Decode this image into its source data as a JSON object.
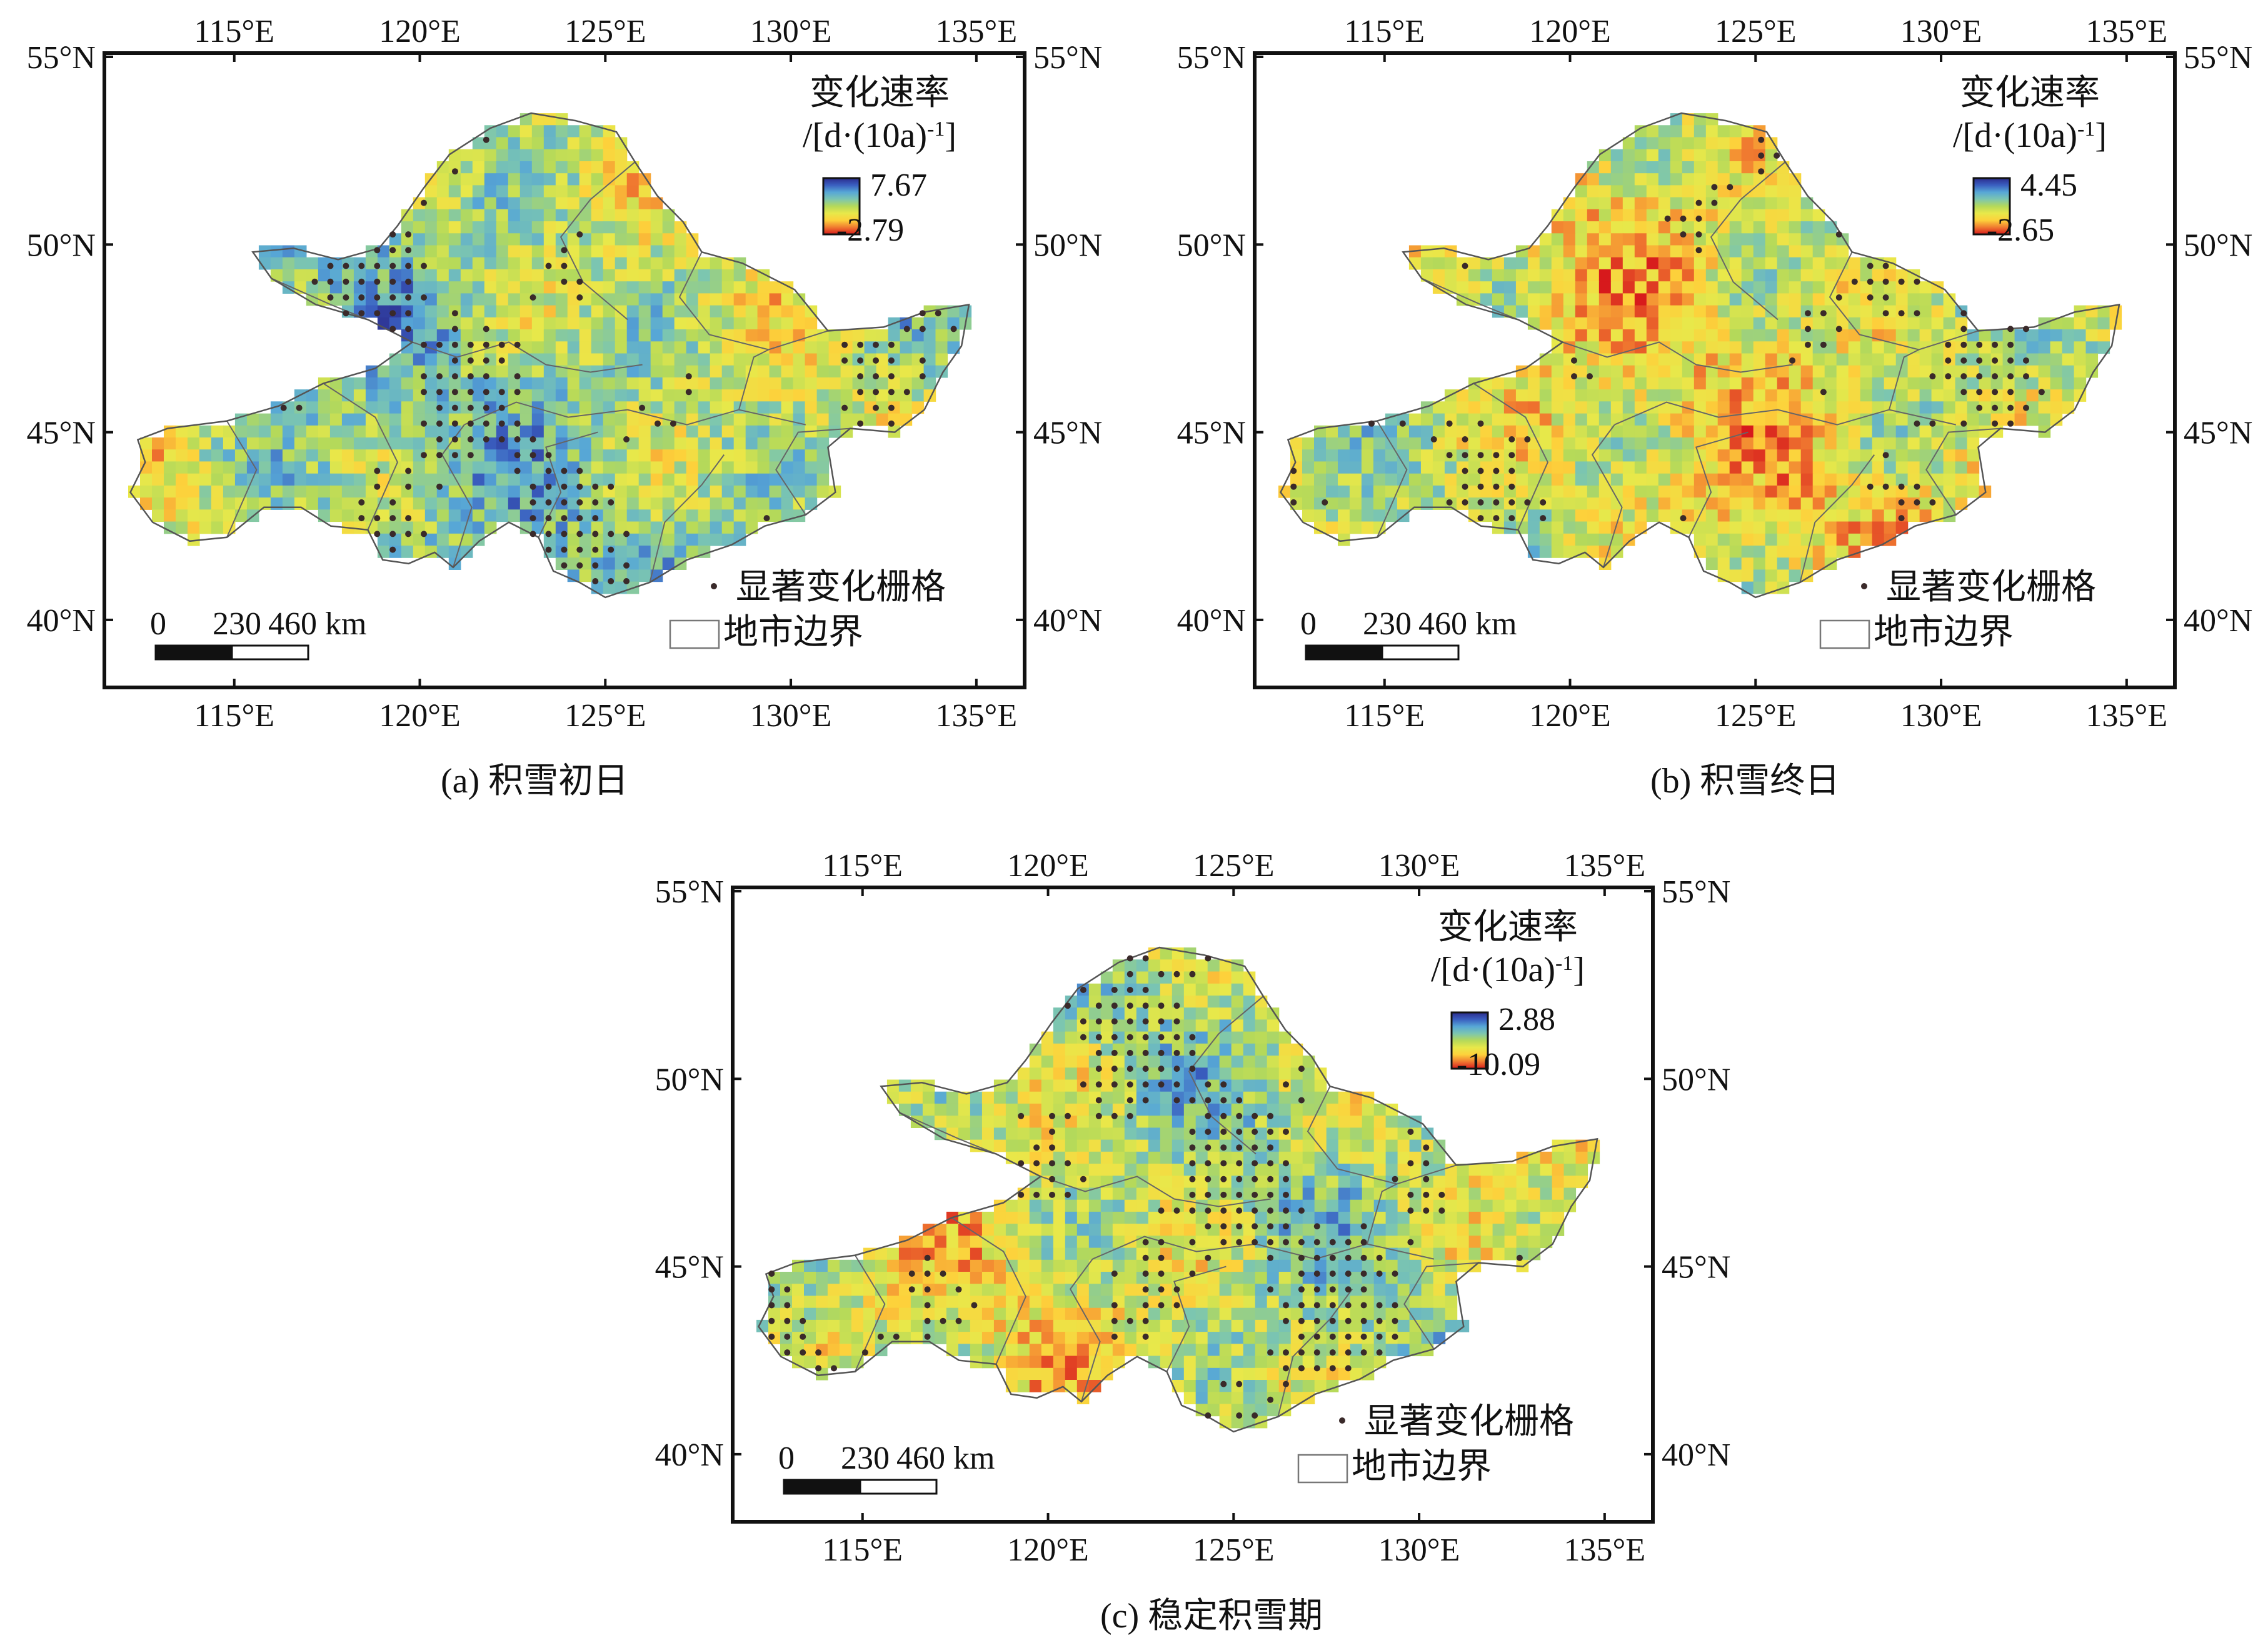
{
  "panels": [
    {
      "id": "a",
      "caption": "(a) 积雪初日",
      "legend": {
        "title": "变化速率",
        "unit_prefix": "/[d·(10a)",
        "unit_sup": "-1",
        "unit_suffix": "]",
        "max": "7.67",
        "min": "-2.79"
      },
      "bias": 0.55,
      "sig_density": 0.35
    },
    {
      "id": "b",
      "caption": "(b) 积雪终日",
      "legend": {
        "title": "变化速率",
        "unit_prefix": "/[d·(10a)",
        "unit_sup": "-1",
        "unit_suffix": "]",
        "max": "4.45",
        "min": "-2.65"
      },
      "bias": 0.3,
      "sig_density": 0.3
    },
    {
      "id": "c",
      "caption": "(c) 稳定积雪期",
      "legend": {
        "title": "变化速率",
        "unit_prefix": "/[d·(10a)",
        "unit_sup": "-1",
        "unit_suffix": "]",
        "max": "2.88",
        "min": "-10.09"
      },
      "bias": 0.4,
      "sig_density": 0.4
    }
  ],
  "axes": {
    "lon_labels": [
      "115°E",
      "120°E",
      "125°E",
      "130°E",
      "135°E"
    ],
    "lat_labels": [
      "55°N",
      "50°N",
      "45°N",
      "40°N"
    ]
  },
  "legend_items": {
    "significant": "显著变化栅格",
    "boundary": "地市边界"
  },
  "scale_bar": {
    "labels": [
      "0",
      "230",
      "460 km"
    ]
  },
  "colors": {
    "ramp": [
      "#d7191c",
      "#f07a30",
      "#fdd13b",
      "#e8e84a",
      "#b4d95a",
      "#7cc6b0",
      "#57a7d6",
      "#3a5fc0",
      "#2b2b8c"
    ],
    "dot": "#3a2a2a",
    "boundary": "#666666"
  }
}
